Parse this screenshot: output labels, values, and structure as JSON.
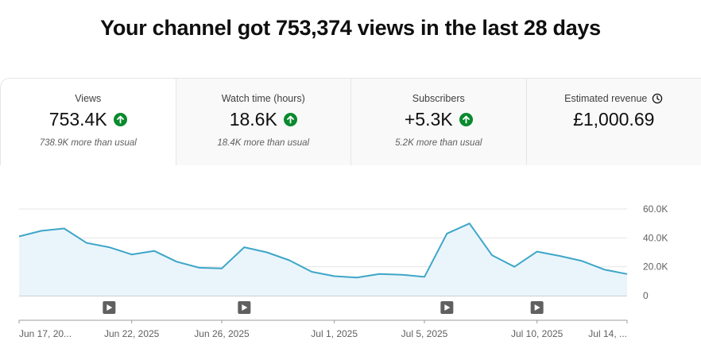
{
  "headline": "Your channel got 753,374 views in the last 28 days",
  "tabs": [
    {
      "title": "Views",
      "value": "753.4K",
      "trend": "up",
      "sub": "738.9K more than usual"
    },
    {
      "title": "Watch time (hours)",
      "value": "18.6K",
      "trend": "up",
      "sub": "18.4K more than usual"
    },
    {
      "title": "Subscribers",
      "value": "+5.3K",
      "trend": "up",
      "sub": "5.2K more than usual"
    },
    {
      "title": "Estimated revenue",
      "value": "£1,000.69",
      "icon": "clock-icon"
    }
  ],
  "colors": {
    "line": "#3ea6c8",
    "fill": "#eaf5fb",
    "up": "#0a8a2e"
  },
  "chart_data": {
    "type": "area",
    "x": [
      "Jun 17, 2025",
      "Jun 18, 2025",
      "Jun 19, 2025",
      "Jun 20, 2025",
      "Jun 21, 2025",
      "Jun 22, 2025",
      "Jun 23, 2025",
      "Jun 24, 2025",
      "Jun 25, 2025",
      "Jun 26, 2025",
      "Jun 27, 2025",
      "Jun 28, 2025",
      "Jun 29, 2025",
      "Jun 30, 2025",
      "Jul 1, 2025",
      "Jul 2, 2025",
      "Jul 3, 2025",
      "Jul 4, 2025",
      "Jul 5, 2025",
      "Jul 6, 2025",
      "Jul 7, 2025",
      "Jul 8, 2025",
      "Jul 9, 2025",
      "Jul 10, 2025",
      "Jul 11, 2025",
      "Jul 12, 2025",
      "Jul 13, 2025",
      "Jul 14, 2025"
    ],
    "series": [
      {
        "values": [
          41000,
          44900,
          46500,
          36500,
          33500,
          28500,
          31000,
          23500,
          19300,
          18800,
          33500,
          30000,
          24500,
          16500,
          13500,
          12500,
          15000,
          14500,
          13000,
          43000,
          50000,
          28000,
          20000,
          30500,
          27500,
          24000,
          18000,
          15000
        ]
      }
    ],
    "ylim": [
      0,
      60000
    ],
    "y_ticks": [
      "0",
      "20.0K",
      "40.0K",
      "60.0K"
    ],
    "x_tick_labels": [
      "Jun 17, 20...",
      "Jun 22, 2025",
      "Jun 26, 2025",
      "Jul 1, 2025",
      "Jul 5, 2025",
      "Jul 10, 2025",
      "Jul 14, ..."
    ],
    "x_tick_dates": [
      "Jun 17, 2025",
      "Jun 22, 2025",
      "Jun 26, 2025",
      "Jul 1, 2025",
      "Jul 5, 2025",
      "Jul 10, 2025",
      "Jul 14, 2025"
    ],
    "video_markers": [
      "Jun 21, 2025",
      "Jun 27, 2025",
      "Jul 6, 2025",
      "Jul 10, 2025"
    ],
    "grid": true
  }
}
